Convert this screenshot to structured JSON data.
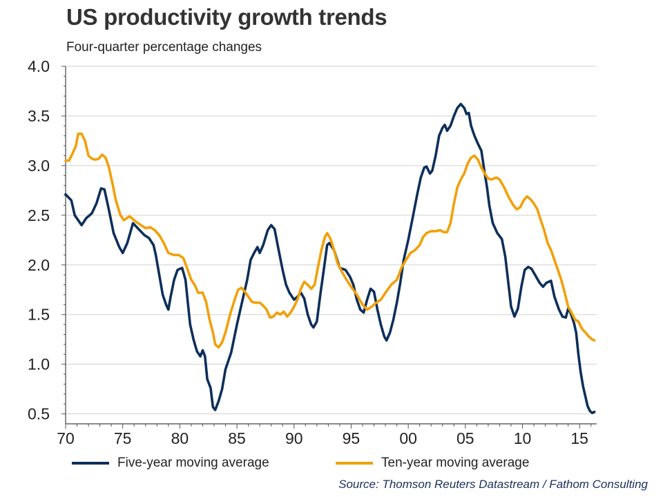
{
  "chart_data": {
    "type": "line",
    "title": "US productivity growth trends",
    "subtitle": "Four-quarter percentage changes",
    "xlabel": "",
    "ylabel": "",
    "xlim": [
      1970,
      2016.5
    ],
    "ylim": [
      0.4,
      4.0
    ],
    "y_ticks": [
      "4.0",
      "3.5",
      "3.0",
      "2.5",
      "2.0",
      "1.5",
      "1.0",
      "0.5"
    ],
    "y_tick_values": [
      4.0,
      3.5,
      3.0,
      2.5,
      2.0,
      1.5,
      1.0,
      0.5
    ],
    "x_ticks": [
      "70",
      "75",
      "80",
      "85",
      "90",
      "95",
      "00",
      "05",
      "10",
      "15"
    ],
    "x_tick_values": [
      1970,
      1975,
      1980,
      1985,
      1990,
      1995,
      2000,
      2005,
      2010,
      2015
    ],
    "grid": "horizontal",
    "legend_position": "bottom",
    "series": [
      {
        "name": "Five-year moving average",
        "color": "#0d2f5a",
        "points": [
          [
            1970.0,
            2.71
          ],
          [
            1970.5,
            2.65
          ],
          [
            1970.8,
            2.5
          ],
          [
            1971.4,
            2.4
          ],
          [
            1971.8,
            2.47
          ],
          [
            1972.3,
            2.52
          ],
          [
            1972.7,
            2.62
          ],
          [
            1973.1,
            2.77
          ],
          [
            1973.4,
            2.76
          ],
          [
            1973.8,
            2.55
          ],
          [
            1974.2,
            2.32
          ],
          [
            1974.7,
            2.18
          ],
          [
            1975.0,
            2.12
          ],
          [
            1975.4,
            2.22
          ],
          [
            1975.9,
            2.42
          ],
          [
            1976.4,
            2.36
          ],
          [
            1976.9,
            2.3
          ],
          [
            1977.3,
            2.27
          ],
          [
            1977.7,
            2.2
          ],
          [
            1977.9,
            2.1
          ],
          [
            1978.2,
            1.9
          ],
          [
            1978.5,
            1.7
          ],
          [
            1978.8,
            1.6
          ],
          [
            1979.0,
            1.55
          ],
          [
            1979.2,
            1.68
          ],
          [
            1979.5,
            1.85
          ],
          [
            1979.8,
            1.95
          ],
          [
            1980.2,
            1.97
          ],
          [
            1980.5,
            1.85
          ],
          [
            1980.7,
            1.62
          ],
          [
            1980.9,
            1.4
          ],
          [
            1981.2,
            1.25
          ],
          [
            1981.5,
            1.13
          ],
          [
            1981.8,
            1.08
          ],
          [
            1982.0,
            1.14
          ],
          [
            1982.2,
            1.08
          ],
          [
            1982.4,
            0.85
          ],
          [
            1982.7,
            0.76
          ],
          [
            1982.9,
            0.57
          ],
          [
            1983.1,
            0.54
          ],
          [
            1983.4,
            0.63
          ],
          [
            1983.7,
            0.75
          ],
          [
            1984.0,
            0.95
          ],
          [
            1984.5,
            1.12
          ],
          [
            1985.0,
            1.4
          ],
          [
            1985.5,
            1.65
          ],
          [
            1985.9,
            1.85
          ],
          [
            1986.2,
            2.05
          ],
          [
            1986.5,
            2.12
          ],
          [
            1986.8,
            2.18
          ],
          [
            1987.0,
            2.12
          ],
          [
            1987.3,
            2.2
          ],
          [
            1987.7,
            2.35
          ],
          [
            1988.0,
            2.4
          ],
          [
            1988.3,
            2.36
          ],
          [
            1988.6,
            2.18
          ],
          [
            1989.0,
            1.95
          ],
          [
            1989.3,
            1.8
          ],
          [
            1989.6,
            1.72
          ],
          [
            1990.0,
            1.65
          ],
          [
            1990.3,
            1.68
          ],
          [
            1990.6,
            1.72
          ],
          [
            1990.9,
            1.66
          ],
          [
            1991.2,
            1.5
          ],
          [
            1991.5,
            1.4
          ],
          [
            1991.7,
            1.37
          ],
          [
            1992.0,
            1.43
          ],
          [
            1992.3,
            1.7
          ],
          [
            1992.6,
            1.95
          ],
          [
            1992.9,
            2.2
          ],
          [
            1993.1,
            2.22
          ],
          [
            1993.5,
            2.15
          ],
          [
            1994.0,
            1.97
          ],
          [
            1994.5,
            1.95
          ],
          [
            1994.9,
            1.88
          ],
          [
            1995.2,
            1.8
          ],
          [
            1995.5,
            1.65
          ],
          [
            1995.8,
            1.55
          ],
          [
            1996.1,
            1.52
          ],
          [
            1996.4,
            1.65
          ],
          [
            1996.7,
            1.76
          ],
          [
            1997.0,
            1.73
          ],
          [
            1997.3,
            1.55
          ],
          [
            1997.6,
            1.4
          ],
          [
            1997.9,
            1.28
          ],
          [
            1998.1,
            1.24
          ],
          [
            1998.4,
            1.32
          ],
          [
            1998.7,
            1.45
          ],
          [
            1999.0,
            1.62
          ],
          [
            1999.3,
            1.82
          ],
          [
            1999.6,
            2.05
          ],
          [
            2000.0,
            2.25
          ],
          [
            2000.4,
            2.48
          ],
          [
            2000.8,
            2.72
          ],
          [
            2001.1,
            2.88
          ],
          [
            2001.4,
            2.98
          ],
          [
            2001.6,
            2.99
          ],
          [
            2001.9,
            2.92
          ],
          [
            2002.1,
            2.95
          ],
          [
            2002.4,
            3.1
          ],
          [
            2002.7,
            3.3
          ],
          [
            2003.0,
            3.38
          ],
          [
            2003.2,
            3.41
          ],
          [
            2003.4,
            3.35
          ],
          [
            2003.7,
            3.4
          ],
          [
            2004.0,
            3.5
          ],
          [
            2004.3,
            3.58
          ],
          [
            2004.6,
            3.62
          ],
          [
            2004.9,
            3.58
          ],
          [
            2005.1,
            3.52
          ],
          [
            2005.3,
            3.53
          ],
          [
            2005.5,
            3.4
          ],
          [
            2005.8,
            3.3
          ],
          [
            2006.1,
            3.22
          ],
          [
            2006.4,
            3.15
          ],
          [
            2006.7,
            2.92
          ],
          [
            2006.9,
            2.78
          ],
          [
            2007.1,
            2.6
          ],
          [
            2007.4,
            2.42
          ],
          [
            2007.8,
            2.32
          ],
          [
            2008.2,
            2.26
          ],
          [
            2008.5,
            2.08
          ],
          [
            2008.8,
            1.78
          ],
          [
            2009.0,
            1.58
          ],
          [
            2009.3,
            1.48
          ],
          [
            2009.6,
            1.56
          ],
          [
            2009.9,
            1.78
          ],
          [
            2010.2,
            1.95
          ],
          [
            2010.5,
            1.98
          ],
          [
            2010.8,
            1.96
          ],
          [
            2011.1,
            1.9
          ],
          [
            2011.5,
            1.82
          ],
          [
            2011.8,
            1.78
          ],
          [
            2012.1,
            1.82
          ],
          [
            2012.5,
            1.84
          ],
          [
            2012.8,
            1.68
          ],
          [
            2013.2,
            1.55
          ],
          [
            2013.5,
            1.48
          ],
          [
            2013.8,
            1.47
          ],
          [
            2014.0,
            1.56
          ],
          [
            2014.2,
            1.52
          ],
          [
            2014.5,
            1.42
          ],
          [
            2014.7,
            1.32
          ],
          [
            2014.9,
            1.1
          ],
          [
            2015.1,
            0.92
          ],
          [
            2015.3,
            0.78
          ],
          [
            2015.5,
            0.68
          ],
          [
            2015.7,
            0.58
          ],
          [
            2015.9,
            0.53
          ],
          [
            2016.1,
            0.51
          ],
          [
            2016.3,
            0.52
          ]
        ]
      },
      {
        "name": "Ten-year moving average",
        "color": "#f2a007",
        "points": [
          [
            1970.0,
            3.05
          ],
          [
            1970.3,
            3.05
          ],
          [
            1970.6,
            3.12
          ],
          [
            1970.9,
            3.2
          ],
          [
            1971.1,
            3.32
          ],
          [
            1971.4,
            3.32
          ],
          [
            1971.7,
            3.25
          ],
          [
            1972.0,
            3.1
          ],
          [
            1972.3,
            3.07
          ],
          [
            1972.6,
            3.06
          ],
          [
            1972.9,
            3.07
          ],
          [
            1973.2,
            3.11
          ],
          [
            1973.5,
            3.08
          ],
          [
            1973.8,
            2.98
          ],
          [
            1974.1,
            2.82
          ],
          [
            1974.4,
            2.65
          ],
          [
            1974.8,
            2.5
          ],
          [
            1975.1,
            2.45
          ],
          [
            1975.6,
            2.49
          ],
          [
            1976.1,
            2.44
          ],
          [
            1976.6,
            2.4
          ],
          [
            1977.0,
            2.37
          ],
          [
            1977.4,
            2.38
          ],
          [
            1977.8,
            2.35
          ],
          [
            1978.2,
            2.3
          ],
          [
            1978.6,
            2.22
          ],
          [
            1979.0,
            2.12
          ],
          [
            1979.5,
            2.1
          ],
          [
            1979.9,
            2.1
          ],
          [
            1980.3,
            2.07
          ],
          [
            1980.6,
            1.98
          ],
          [
            1981.0,
            1.85
          ],
          [
            1981.3,
            1.8
          ],
          [
            1981.6,
            1.72
          ],
          [
            1982.0,
            1.72
          ],
          [
            1982.3,
            1.63
          ],
          [
            1982.6,
            1.45
          ],
          [
            1982.9,
            1.32
          ],
          [
            1983.1,
            1.2
          ],
          [
            1983.4,
            1.17
          ],
          [
            1983.7,
            1.22
          ],
          [
            1984.0,
            1.32
          ],
          [
            1984.4,
            1.5
          ],
          [
            1984.8,
            1.65
          ],
          [
            1985.1,
            1.75
          ],
          [
            1985.4,
            1.77
          ],
          [
            1985.7,
            1.73
          ],
          [
            1986.0,
            1.68
          ],
          [
            1986.3,
            1.63
          ],
          [
            1986.6,
            1.62
          ],
          [
            1987.0,
            1.62
          ],
          [
            1987.3,
            1.59
          ],
          [
            1987.6,
            1.55
          ],
          [
            1987.9,
            1.47
          ],
          [
            1988.2,
            1.48
          ],
          [
            1988.5,
            1.52
          ],
          [
            1988.8,
            1.5
          ],
          [
            1989.1,
            1.53
          ],
          [
            1989.4,
            1.48
          ],
          [
            1989.7,
            1.52
          ],
          [
            1990.0,
            1.58
          ],
          [
            1990.3,
            1.65
          ],
          [
            1990.6,
            1.76
          ],
          [
            1990.9,
            1.83
          ],
          [
            1991.2,
            1.8
          ],
          [
            1991.5,
            1.76
          ],
          [
            1991.8,
            1.8
          ],
          [
            1992.1,
            1.98
          ],
          [
            1992.4,
            2.15
          ],
          [
            1992.7,
            2.28
          ],
          [
            1992.9,
            2.32
          ],
          [
            1993.2,
            2.26
          ],
          [
            1993.5,
            2.15
          ],
          [
            1993.8,
            2.02
          ],
          [
            1994.2,
            1.93
          ],
          [
            1994.6,
            1.85
          ],
          [
            1995.0,
            1.78
          ],
          [
            1995.5,
            1.7
          ],
          [
            1996.0,
            1.6
          ],
          [
            1996.4,
            1.55
          ],
          [
            1996.8,
            1.58
          ],
          [
            1997.2,
            1.62
          ],
          [
            1997.6,
            1.65
          ],
          [
            1998.0,
            1.72
          ],
          [
            1998.5,
            1.8
          ],
          [
            1999.0,
            1.85
          ],
          [
            1999.4,
            1.97
          ],
          [
            1999.8,
            2.05
          ],
          [
            2000.2,
            2.12
          ],
          [
            2000.6,
            2.15
          ],
          [
            2001.0,
            2.2
          ],
          [
            2001.3,
            2.28
          ],
          [
            2001.6,
            2.32
          ],
          [
            2002.0,
            2.34
          ],
          [
            2002.4,
            2.34
          ],
          [
            2002.8,
            2.35
          ],
          [
            2003.1,
            2.33
          ],
          [
            2003.4,
            2.33
          ],
          [
            2003.7,
            2.42
          ],
          [
            2004.0,
            2.62
          ],
          [
            2004.3,
            2.78
          ],
          [
            2004.6,
            2.86
          ],
          [
            2004.9,
            2.92
          ],
          [
            2005.2,
            3.02
          ],
          [
            2005.5,
            3.08
          ],
          [
            2005.8,
            3.1
          ],
          [
            2006.1,
            3.06
          ],
          [
            2006.4,
            2.98
          ],
          [
            2006.7,
            2.92
          ],
          [
            2007.0,
            2.87
          ],
          [
            2007.3,
            2.86
          ],
          [
            2007.7,
            2.88
          ],
          [
            2008.0,
            2.86
          ],
          [
            2008.4,
            2.78
          ],
          [
            2008.8,
            2.68
          ],
          [
            2009.2,
            2.6
          ],
          [
            2009.5,
            2.56
          ],
          [
            2009.8,
            2.58
          ],
          [
            2010.1,
            2.65
          ],
          [
            2010.4,
            2.69
          ],
          [
            2010.7,
            2.66
          ],
          [
            2011.0,
            2.62
          ],
          [
            2011.3,
            2.56
          ],
          [
            2011.6,
            2.45
          ],
          [
            2011.9,
            2.35
          ],
          [
            2012.2,
            2.22
          ],
          [
            2012.5,
            2.15
          ],
          [
            2012.8,
            2.05
          ],
          [
            2013.1,
            1.95
          ],
          [
            2013.4,
            1.85
          ],
          [
            2013.7,
            1.72
          ],
          [
            2014.0,
            1.58
          ],
          [
            2014.3,
            1.52
          ],
          [
            2014.6,
            1.45
          ],
          [
            2014.9,
            1.43
          ],
          [
            2015.2,
            1.36
          ],
          [
            2015.5,
            1.32
          ],
          [
            2015.8,
            1.28
          ],
          [
            2016.1,
            1.25
          ],
          [
            2016.3,
            1.24
          ]
        ]
      }
    ],
    "source": "Source: Thomson Reuters Datastream / Fathom Consulting"
  }
}
